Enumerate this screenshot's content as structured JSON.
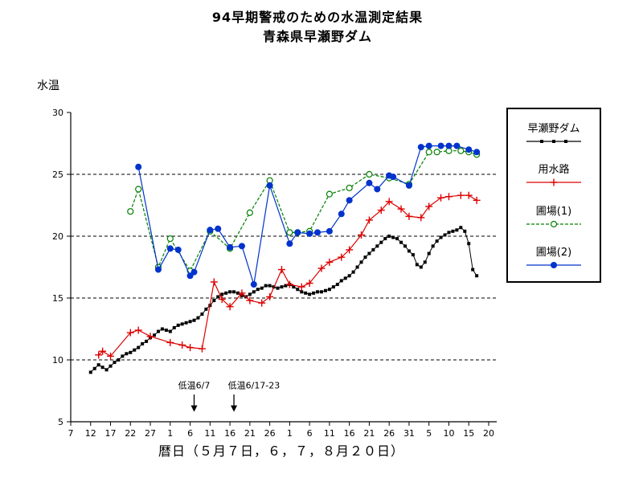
{
  "chart_data": {
    "type": "line",
    "title_lines": [
      "94早期警戒のための水温測定結果",
      "青森県早瀬野ダム"
    ],
    "ylabel": "水温",
    "xlabel": "暦日（５月７日，６，７，８月２０日）",
    "ylim": [
      5,
      30
    ],
    "y_ticks": [
      30,
      25,
      20,
      15,
      10,
      5
    ],
    "gridlines": [
      25,
      20,
      15,
      10
    ],
    "grid_style": "dashed",
    "legend_position": "right",
    "x_range_days": [
      0,
      105
    ],
    "x_tick_days": [
      0,
      5,
      10,
      15,
      20,
      25,
      30,
      35,
      40,
      45,
      50,
      55,
      60,
      65,
      70,
      75,
      80,
      85,
      90,
      95,
      100,
      105
    ],
    "x_tick_labels": [
      "7",
      "12",
      "17",
      "22",
      "27",
      "1",
      "6",
      "11",
      "16",
      "21",
      "26",
      "1",
      "6",
      "11",
      "16",
      "21",
      "26",
      "31",
      "5",
      "10",
      "15",
      "20"
    ],
    "series": [
      {
        "key": "dam",
        "name": "早瀬野ダム",
        "color": "#000000",
        "marker": "square",
        "line": "solid",
        "points": [
          [
            5,
            9.0
          ],
          [
            6,
            9.3
          ],
          [
            7,
            9.6
          ],
          [
            8,
            9.4
          ],
          [
            9,
            9.2
          ],
          [
            10,
            9.5
          ],
          [
            11,
            9.8
          ],
          [
            12,
            10.0
          ],
          [
            13,
            10.3
          ],
          [
            14,
            10.5
          ],
          [
            15,
            10.6
          ],
          [
            16,
            10.8
          ],
          [
            17,
            11.0
          ],
          [
            18,
            11.3
          ],
          [
            19,
            11.5
          ],
          [
            20,
            11.8
          ],
          [
            21,
            12.0
          ],
          [
            22,
            12.3
          ],
          [
            23,
            12.5
          ],
          [
            24,
            12.4
          ],
          [
            25,
            12.3
          ],
          [
            26,
            12.6
          ],
          [
            27,
            12.8
          ],
          [
            28,
            12.9
          ],
          [
            29,
            13.0
          ],
          [
            30,
            13.1
          ],
          [
            31,
            13.2
          ],
          [
            32,
            13.4
          ],
          [
            33,
            13.7
          ],
          [
            34,
            14.1
          ],
          [
            35,
            14.4
          ],
          [
            36,
            14.8
          ],
          [
            37,
            15.1
          ],
          [
            38,
            15.3
          ],
          [
            39,
            15.4
          ],
          [
            40,
            15.5
          ],
          [
            41,
            15.5
          ],
          [
            42,
            15.4
          ],
          [
            43,
            15.2
          ],
          [
            44,
            15.1
          ],
          [
            45,
            15.3
          ],
          [
            46,
            15.5
          ],
          [
            47,
            15.7
          ],
          [
            48,
            15.8
          ],
          [
            49,
            16.0
          ],
          [
            50,
            16.0
          ],
          [
            51,
            15.9
          ],
          [
            52,
            15.8
          ],
          [
            53,
            15.9
          ],
          [
            54,
            16.0
          ],
          [
            55,
            16.1
          ],
          [
            56,
            15.9
          ],
          [
            57,
            15.7
          ],
          [
            58,
            15.5
          ],
          [
            59,
            15.4
          ],
          [
            60,
            15.3
          ],
          [
            61,
            15.4
          ],
          [
            62,
            15.5
          ],
          [
            63,
            15.5
          ],
          [
            64,
            15.6
          ],
          [
            65,
            15.7
          ],
          [
            66,
            15.9
          ],
          [
            67,
            16.1
          ],
          [
            68,
            16.4
          ],
          [
            69,
            16.6
          ],
          [
            70,
            16.8
          ],
          [
            71,
            17.1
          ],
          [
            72,
            17.5
          ],
          [
            73,
            17.9
          ],
          [
            74,
            18.3
          ],
          [
            75,
            18.6
          ],
          [
            76,
            18.9
          ],
          [
            77,
            19.2
          ],
          [
            78,
            19.5
          ],
          [
            79,
            19.8
          ],
          [
            80,
            20.0
          ],
          [
            81,
            19.9
          ],
          [
            82,
            19.8
          ],
          [
            83,
            19.5
          ],
          [
            84,
            19.2
          ],
          [
            85,
            18.8
          ],
          [
            86,
            18.5
          ],
          [
            87,
            17.7
          ],
          [
            88,
            17.5
          ],
          [
            89,
            17.9
          ],
          [
            90,
            18.6
          ],
          [
            91,
            19.2
          ],
          [
            92,
            19.6
          ],
          [
            93,
            19.9
          ],
          [
            94,
            20.1
          ],
          [
            95,
            20.3
          ],
          [
            96,
            20.4
          ],
          [
            97,
            20.5
          ],
          [
            98,
            20.7
          ],
          [
            99,
            20.4
          ],
          [
            100,
            19.4
          ],
          [
            101,
            17.3
          ],
          [
            102,
            16.8
          ]
        ]
      },
      {
        "key": "canal",
        "name": "用水路",
        "color": "#dd0000",
        "marker": "plus",
        "line": "solid",
        "points": [
          [
            7,
            10.4
          ],
          [
            8,
            10.7
          ],
          [
            10,
            10.3
          ],
          [
            15,
            12.2
          ],
          [
            17,
            12.4
          ],
          [
            20,
            11.9
          ],
          [
            25,
            11.4
          ],
          [
            28,
            11.2
          ],
          [
            30,
            11.0
          ],
          [
            33,
            10.9
          ],
          [
            36,
            16.3
          ],
          [
            38,
            14.9
          ],
          [
            40,
            14.3
          ],
          [
            43,
            15.4
          ],
          [
            45,
            14.8
          ],
          [
            48,
            14.6
          ],
          [
            50,
            15.1
          ],
          [
            53,
            17.3
          ],
          [
            55,
            16.1
          ],
          [
            58,
            15.9
          ],
          [
            60,
            16.2
          ],
          [
            63,
            17.4
          ],
          [
            65,
            17.9
          ],
          [
            68,
            18.3
          ],
          [
            70,
            18.9
          ],
          [
            73,
            20.1
          ],
          [
            75,
            21.3
          ],
          [
            78,
            22.1
          ],
          [
            80,
            22.8
          ],
          [
            83,
            22.2
          ],
          [
            85,
            21.6
          ],
          [
            88,
            21.5
          ],
          [
            90,
            22.4
          ],
          [
            93,
            23.1
          ],
          [
            95,
            23.2
          ],
          [
            98,
            23.3
          ],
          [
            100,
            23.3
          ],
          [
            102,
            22.9
          ]
        ]
      },
      {
        "key": "field1",
        "name": "圃場(1)",
        "color": "#008000",
        "marker": "circle-open",
        "line": "dashed",
        "points": [
          [
            15,
            22.0
          ],
          [
            17,
            23.8
          ],
          [
            22,
            17.5
          ],
          [
            25,
            19.8
          ],
          [
            30,
            17.2
          ],
          [
            35,
            20.4
          ],
          [
            40,
            19.0
          ],
          [
            45,
            21.9
          ],
          [
            50,
            24.5
          ],
          [
            55,
            20.3
          ],
          [
            57,
            20.3
          ],
          [
            60,
            20.4
          ],
          [
            65,
            23.4
          ],
          [
            70,
            23.9
          ],
          [
            75,
            25.0
          ],
          [
            80,
            24.7
          ],
          [
            85,
            24.2
          ],
          [
            90,
            26.8
          ],
          [
            92,
            26.8
          ],
          [
            95,
            26.9
          ],
          [
            98,
            26.9
          ],
          [
            100,
            26.8
          ],
          [
            102,
            26.6
          ]
        ]
      },
      {
        "key": "field2",
        "name": "圃場(2)",
        "color": "#0033cc",
        "marker": "circle-filled",
        "line": "solid",
        "points": [
          [
            17,
            25.6
          ],
          [
            22,
            17.3
          ],
          [
            25,
            19.0
          ],
          [
            27,
            18.9
          ],
          [
            30,
            16.8
          ],
          [
            31,
            17.1
          ],
          [
            35,
            20.5
          ],
          [
            37,
            20.6
          ],
          [
            40,
            19.1
          ],
          [
            43,
            19.2
          ],
          [
            46,
            16.1
          ],
          [
            50,
            24.1
          ],
          [
            55,
            19.4
          ],
          [
            57,
            20.3
          ],
          [
            60,
            20.2
          ],
          [
            62,
            20.3
          ],
          [
            65,
            20.4
          ],
          [
            68,
            21.8
          ],
          [
            70,
            22.9
          ],
          [
            75,
            24.3
          ],
          [
            77,
            23.8
          ],
          [
            80,
            24.9
          ],
          [
            81,
            24.8
          ],
          [
            85,
            24.1
          ],
          [
            88,
            27.2
          ],
          [
            90,
            27.3
          ],
          [
            93,
            27.3
          ],
          [
            95,
            27.3
          ],
          [
            97,
            27.3
          ],
          [
            100,
            27.0
          ],
          [
            102,
            26.8
          ]
        ]
      }
    ],
    "annotations": [
      {
        "text": "低温6/7",
        "arrow_day": 31,
        "text_day": 31,
        "anchor": "middle",
        "text_val": 7.7,
        "arrow_top_val": 7.2,
        "arrow_tip_val": 5.8
      },
      {
        "text": "低温6/17-23",
        "arrow_day": 41,
        "text_day": 39.5,
        "anchor": "start",
        "text_val": 7.7,
        "arrow_top_val": 7.2,
        "arrow_tip_val": 5.8
      }
    ]
  },
  "legend": {
    "items": [
      {
        "label": "早瀬野ダム",
        "series": 0
      },
      {
        "label": "用水路",
        "series": 1
      },
      {
        "label": "圃場(1)",
        "series": 2
      },
      {
        "label": "圃場(2)",
        "series": 3
      }
    ]
  }
}
